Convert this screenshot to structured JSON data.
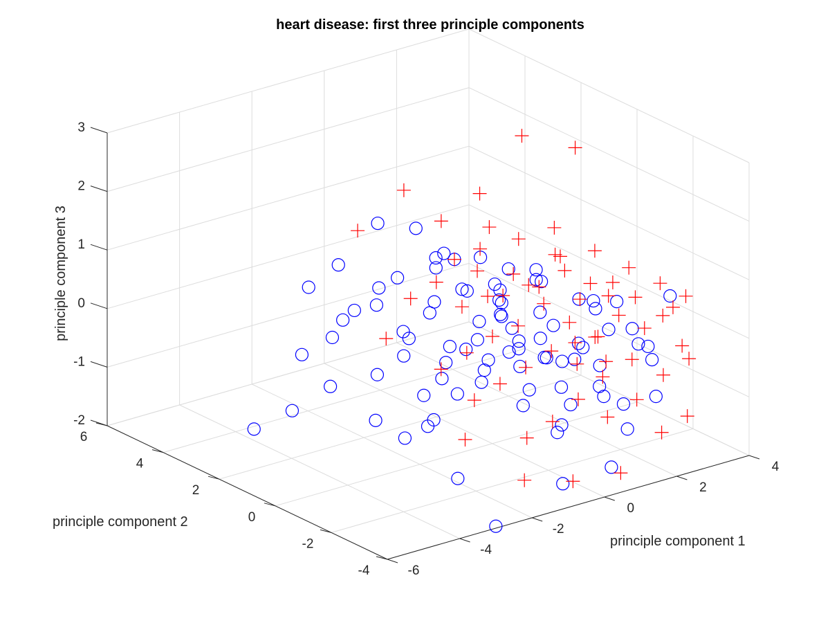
{
  "chart_data": {
    "type": "scatter",
    "title": "heart disease: first three principle components",
    "xlabel": "principle component 1",
    "ylabel": "principle component 2",
    "zlabel": "principle component 3",
    "xlim": [
      -6,
      4
    ],
    "ylim": [
      -4,
      6
    ],
    "zlim": [
      -2,
      3
    ],
    "xticks": [
      "-6",
      "-4",
      "-2",
      "0",
      "2",
      "4"
    ],
    "yticks": [
      "-4",
      "-2",
      "0",
      "2",
      "4",
      "6"
    ],
    "zticks": [
      "-2",
      "-1",
      "0",
      "1",
      "2",
      "3"
    ],
    "grid": true,
    "colors": {
      "circle": "#0000ff",
      "plus": "#ff0000",
      "axis": "#262626",
      "grid": "#dcdcdc"
    },
    "series": [
      {
        "marker": "circle",
        "color": "#0000ff",
        "points": [
          [
            -3.8,
            3.6,
            -1.9
          ],
          [
            -2.9,
            3.4,
            -1.7
          ],
          [
            -2.4,
            3.7,
            -0.9
          ],
          [
            -2.0,
            3.2,
            -1.4
          ],
          [
            -1.5,
            3.4,
            -0.4
          ],
          [
            -1.0,
            2.8,
            1.3
          ],
          [
            -0.8,
            3.1,
            -0.2
          ],
          [
            -0.3,
            3.0,
            0.2
          ],
          [
            -0.1,
            2.6,
            1.1
          ],
          [
            0.3,
            2.4,
            0.4
          ],
          [
            -2.1,
            3.0,
            -0.5
          ],
          [
            -1.2,
            2.5,
            0.3
          ],
          [
            -0.6,
            2.2,
            -0.6
          ],
          [
            0.1,
            2.2,
            -0.1
          ],
          [
            0.5,
            2.0,
            0.6
          ],
          [
            -1.8,
            2.6,
            0.0
          ],
          [
            -1.4,
            2.3,
            -1.1
          ],
          [
            -0.9,
            2.0,
            -0.8
          ],
          [
            -0.5,
            1.8,
            -1.5
          ],
          [
            0.0,
            1.8,
            -1.3
          ],
          [
            0.4,
            1.6,
            0.2
          ],
          [
            0.8,
            1.5,
            -0.4
          ],
          [
            -1.6,
            2.1,
            -1.8
          ],
          [
            -1.1,
            1.7,
            -2.1
          ],
          [
            -0.7,
            1.4,
            -1.9
          ],
          [
            -0.2,
            1.4,
            -0.9
          ],
          [
            0.2,
            1.2,
            -0.7
          ],
          [
            0.6,
            1.2,
            0.8
          ],
          [
            1.0,
            1.0,
            -0.2
          ],
          [
            1.3,
            1.1,
            0.5
          ],
          [
            -1.3,
            1.5,
            -0.2
          ],
          [
            -0.8,
            1.2,
            0.1
          ],
          [
            -0.4,
            1.0,
            -0.5
          ],
          [
            0.0,
            0.9,
            0.4
          ],
          [
            0.4,
            0.8,
            -1.0
          ],
          [
            0.8,
            0.7,
            0.1
          ],
          [
            1.2,
            0.6,
            -0.6
          ],
          [
            1.6,
            0.5,
            0.4
          ],
          [
            -1.0,
            0.8,
            -1.6
          ],
          [
            -0.5,
            0.6,
            -1.2
          ],
          [
            -0.1,
            0.4,
            -0.3
          ],
          [
            0.3,
            0.3,
            0.6
          ],
          [
            0.7,
            0.2,
            -0.2
          ],
          [
            1.1,
            0.1,
            -1.3
          ],
          [
            1.5,
            0.0,
            -0.8
          ],
          [
            -0.8,
            0.2,
            -2.5
          ],
          [
            -0.3,
            0.0,
            -0.9
          ],
          [
            0.1,
            -0.2,
            0.2
          ],
          [
            0.5,
            -0.3,
            -0.4
          ],
          [
            0.9,
            -0.4,
            0.9
          ],
          [
            1.3,
            -0.5,
            -0.1
          ],
          [
            1.7,
            -0.6,
            -1.5
          ],
          [
            -0.2,
            -0.5,
            0.6
          ],
          [
            0.3,
            -0.6,
            -0.6
          ],
          [
            0.7,
            -0.8,
            0.3
          ],
          [
            1.1,
            -0.9,
            -1.8
          ],
          [
            1.5,
            -1.0,
            -0.6
          ],
          [
            2.0,
            -1.1,
            0.2
          ],
          [
            -0.6,
            -0.9,
            -3.1
          ],
          [
            0.0,
            -1.1,
            -1.1
          ],
          [
            0.4,
            -1.2,
            0.0
          ],
          [
            0.9,
            -1.3,
            -0.9
          ],
          [
            1.3,
            -1.4,
            -0.2
          ],
          [
            1.8,
            -1.5,
            -1.0
          ],
          [
            2.2,
            -1.6,
            0.4
          ],
          [
            0.2,
            -1.6,
            -0.2
          ],
          [
            0.6,
            -1.7,
            -1.4
          ],
          [
            1.0,
            -1.8,
            0.7
          ],
          [
            1.5,
            -1.9,
            -0.5
          ],
          [
            2.0,
            -2.1,
            -1.2
          ],
          [
            2.6,
            -2.2,
            -0.3
          ],
          [
            0.8,
            -2.2,
            0.0
          ],
          [
            1.3,
            -2.3,
            -0.9
          ],
          [
            1.8,
            -2.5,
            -1.5
          ],
          [
            2.4,
            -2.6,
            -0.4
          ],
          [
            1.7,
            -2.8,
            0.3
          ],
          [
            2.2,
            -3.0,
            -0.9
          ],
          [
            1.2,
            -2.7,
            -2.0
          ],
          [
            0.4,
            -2.0,
            -2.3
          ],
          [
            2.9,
            -2.6,
            0.6
          ],
          [
            -1.7,
            3.3,
            0.6
          ],
          [
            -2.6,
            3.2,
            0.4
          ],
          [
            -0.1,
            1.6,
            0.9
          ],
          [
            0.6,
            0.5,
            0.4
          ],
          [
            1.2,
            -0.2,
            0.6
          ],
          [
            1.9,
            -1.7,
            0.0
          ],
          [
            2.1,
            -2.5,
            -0.1
          ],
          [
            1.0,
            -1.2,
            -0.5
          ],
          [
            -0.4,
            1.5,
            0.9
          ],
          [
            0.2,
            0.4,
            -0.7
          ],
          [
            1.4,
            -1.8,
            0.6
          ],
          [
            0.0,
            -0.6,
            -0.3
          ]
        ]
      },
      {
        "marker": "plus",
        "color": "#ff0000",
        "points": [
          [
            -1.4,
            3.0,
            1.2
          ],
          [
            -0.2,
            2.9,
            1.7
          ],
          [
            0.6,
            2.6,
            1.1
          ],
          [
            1.2,
            2.0,
            1.6
          ],
          [
            1.9,
            1.4,
            2.6
          ],
          [
            2.6,
            0.4,
            2.5
          ],
          [
            -1.0,
            2.5,
            -0.6
          ],
          [
            0.9,
            1.6,
            0.8
          ],
          [
            1.5,
            1.0,
            1.0
          ],
          [
            2.1,
            0.5,
            1.2
          ],
          [
            2.6,
            -0.3,
            0.9
          ],
          [
            3.0,
            -1.0,
            0.7
          ],
          [
            3.4,
            -1.6,
            0.5
          ],
          [
            3.8,
            -2.0,
            0.3
          ],
          [
            3.2,
            -1.3,
            -0.3
          ],
          [
            2.8,
            -0.9,
            -0.1
          ],
          [
            2.4,
            -0.4,
            0.4
          ],
          [
            2.0,
            0.0,
            0.6
          ],
          [
            1.6,
            0.4,
            0.3
          ],
          [
            1.2,
            0.8,
            0.5
          ],
          [
            0.8,
            1.2,
            0.1
          ],
          [
            0.4,
            1.6,
            -0.1
          ],
          [
            0.0,
            2.0,
            0.3
          ],
          [
            -0.4,
            2.4,
            0.0
          ],
          [
            2.3,
            -0.8,
            -0.4
          ],
          [
            1.9,
            -0.3,
            -0.2
          ],
          [
            1.5,
            0.1,
            0.1
          ],
          [
            1.1,
            0.5,
            -0.3
          ],
          [
            0.7,
            0.9,
            -0.5
          ],
          [
            0.3,
            1.3,
            -0.8
          ],
          [
            -0.1,
            1.7,
            -1.1
          ],
          [
            2.7,
            -1.5,
            -0.7
          ],
          [
            2.2,
            -1.1,
            -1.0
          ],
          [
            1.8,
            -0.7,
            -0.8
          ],
          [
            1.4,
            -0.3,
            -0.6
          ],
          [
            1.0,
            0.1,
            -0.9
          ],
          [
            0.6,
            0.5,
            -1.2
          ],
          [
            0.2,
            0.9,
            -1.5
          ],
          [
            3.5,
            -2.5,
            -0.6
          ],
          [
            3.1,
            -2.1,
            -0.9
          ],
          [
            2.6,
            -1.8,
            -1.3
          ],
          [
            2.1,
            -1.4,
            -1.6
          ],
          [
            1.6,
            -1.0,
            -1.3
          ],
          [
            1.2,
            -0.6,
            -1.7
          ],
          [
            0.8,
            -0.2,
            -2.0
          ],
          [
            3.3,
            -2.7,
            -1.5
          ],
          [
            2.9,
            -2.3,
            -1.8
          ],
          [
            2.0,
            -2.0,
            -2.4
          ],
          [
            1.3,
            -1.2,
            -2.6
          ],
          [
            0.5,
            -0.5,
            -2.6
          ],
          [
            2.5,
            0.1,
            0.0
          ],
          [
            2.9,
            -0.4,
            0.1
          ],
          [
            1.7,
            0.9,
            0.2
          ],
          [
            1.3,
            1.3,
            0.0
          ],
          [
            0.9,
            1.7,
            0.4
          ],
          [
            3.6,
            -1.8,
            0.1
          ],
          [
            2.4,
            -1.2,
            0.6
          ],
          [
            1.8,
            -0.1,
            0.9
          ],
          [
            0.5,
            2.0,
            0.6
          ],
          [
            1.0,
            1.4,
            1.2
          ],
          [
            2.2,
            0.6,
            0.7
          ],
          [
            3.1,
            -1.1,
            0.2
          ],
          [
            1.9,
            -0.5,
            -0.5
          ],
          [
            2.6,
            -0.7,
            -0.9
          ],
          [
            0.1,
            1.1,
            -2.2
          ],
          [
            3.0,
            -2.9,
            -0.2
          ],
          [
            2.7,
            -2.6,
            0.3
          ],
          [
            1.6,
            -1.6,
            -0.1
          ]
        ]
      }
    ]
  }
}
